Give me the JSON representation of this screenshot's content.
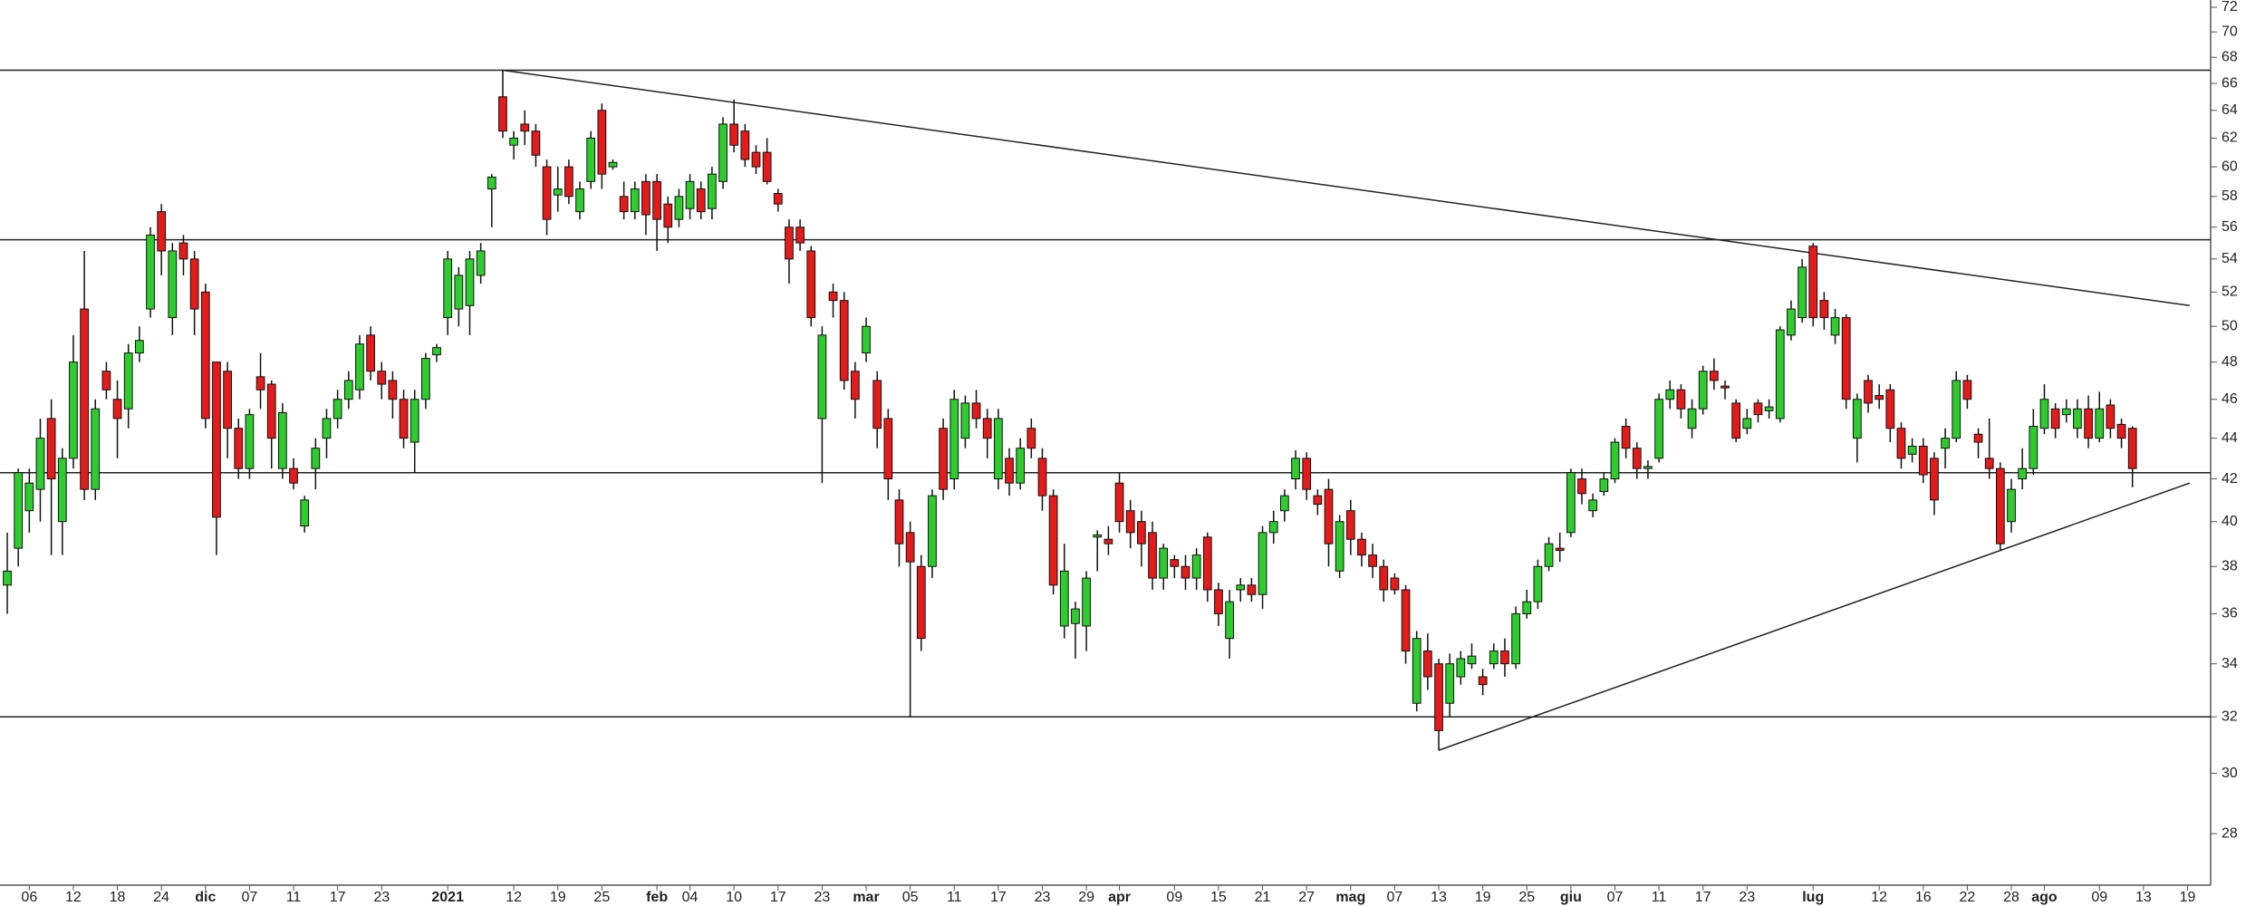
{
  "chart_data": {
    "type": "candlestick",
    "log_scale": true,
    "up_color": "#2ecc2e",
    "down_color": "#e41b1b",
    "line_color": "#222222",
    "xlim": [
      -0.66,
      200.1
    ],
    "ylim": [
      26.4,
      72.6
    ],
    "yticks": [
      28,
      30,
      32,
      34,
      36,
      38,
      40,
      42,
      44,
      46,
      48,
      50,
      52,
      54,
      56,
      58,
      60,
      62,
      64,
      66,
      68,
      70,
      72
    ],
    "xticks": [
      {
        "value": 2,
        "label": "06"
      },
      {
        "value": 6,
        "label": "12"
      },
      {
        "value": 10,
        "label": "18"
      },
      {
        "value": 14,
        "label": "24"
      },
      {
        "value": 18,
        "label": "dic"
      },
      {
        "value": 22,
        "label": "07"
      },
      {
        "value": 26,
        "label": "11"
      },
      {
        "value": 30,
        "label": "17"
      },
      {
        "value": 34,
        "label": "23"
      },
      {
        "value": 40,
        "label": "2021"
      },
      {
        "value": 46,
        "label": "12"
      },
      {
        "value": 50,
        "label": "19"
      },
      {
        "value": 54,
        "label": "25"
      },
      {
        "value": 59,
        "label": "feb"
      },
      {
        "value": 62,
        "label": "04"
      },
      {
        "value": 66,
        "label": "10"
      },
      {
        "value": 70,
        "label": "17"
      },
      {
        "value": 74,
        "label": "23"
      },
      {
        "value": 78,
        "label": "mar"
      },
      {
        "value": 82,
        "label": "05"
      },
      {
        "value": 86,
        "label": "11"
      },
      {
        "value": 90,
        "label": "17"
      },
      {
        "value": 94,
        "label": "23"
      },
      {
        "value": 98,
        "label": "29"
      },
      {
        "value": 101,
        "label": "apr"
      },
      {
        "value": 106,
        "label": "09"
      },
      {
        "value": 110,
        "label": "15"
      },
      {
        "value": 114,
        "label": "21"
      },
      {
        "value": 118,
        "label": "27"
      },
      {
        "value": 122,
        "label": "mag"
      },
      {
        "value": 126,
        "label": "07"
      },
      {
        "value": 130,
        "label": "13"
      },
      {
        "value": 134,
        "label": "19"
      },
      {
        "value": 138,
        "label": "25"
      },
      {
        "value": 142,
        "label": "giu"
      },
      {
        "value": 146,
        "label": "07"
      },
      {
        "value": 150,
        "label": "11"
      },
      {
        "value": 154,
        "label": "17"
      },
      {
        "value": 158,
        "label": "23"
      },
      {
        "value": 164,
        "label": "lug"
      },
      {
        "value": 170,
        "label": "12"
      },
      {
        "value": 174,
        "label": "16"
      },
      {
        "value": 178,
        "label": "22"
      },
      {
        "value": 182,
        "label": "28"
      },
      {
        "value": 185,
        "label": "ago"
      },
      {
        "value": 190,
        "label": "09"
      },
      {
        "value": 194,
        "label": "13"
      },
      {
        "value": 198,
        "label": "19"
      }
    ],
    "hlines": [
      67,
      55.2,
      42.3,
      32
    ],
    "trendlines": [
      {
        "x": [
          45,
          198.2
        ],
        "y": [
          67,
          51.2
        ]
      },
      {
        "x": [
          130,
          198.2
        ],
        "y": [
          30.8,
          41.8
        ]
      }
    ],
    "open": [
      37.2,
      38.8,
      40.5,
      41.5,
      45,
      40,
      43,
      51,
      41.5,
      47.5,
      46,
      45.5,
      48.5,
      51,
      57,
      50.5,
      55,
      54,
      52,
      48,
      47.5,
      44.5,
      42.5,
      47.2,
      46.8,
      42.5,
      42.5,
      39.8,
      42.5,
      44,
      45,
      46,
      46.5,
      49.5,
      47.5,
      47,
      46,
      43.8,
      46,
      48.4,
      50.5,
      51,
      51.2,
      53,
      58.5,
      65,
      61.5,
      63,
      62.5,
      60,
      58.1,
      60,
      57,
      59,
      64,
      60,
      58,
      57,
      59,
      59,
      57.5,
      56.5,
      57.2,
      58.5,
      57.2,
      59,
      63,
      62.5,
      61,
      61,
      58.2,
      56,
      56,
      54.5,
      45,
      52,
      51.5,
      47.5,
      48.5,
      47,
      45,
      41,
      39.5,
      38,
      38,
      44.5,
      42,
      44,
      45.8,
      45,
      42,
      43,
      41.8,
      44.5,
      43,
      41.2,
      35.5,
      35.6,
      35.5,
      39.3,
      39.2,
      41.8,
      40.5,
      40,
      39.5,
      37.5,
      38.3,
      38,
      37.5,
      39.3,
      37,
      35,
      37,
      37.2,
      36.8,
      39.5,
      40.5,
      42,
      43,
      41.2,
      41.5,
      37.8,
      40.5,
      39.2,
      38.5,
      38,
      37.5,
      37,
      32.5,
      34.5,
      34,
      32.5,
      33.5,
      34,
      33.5,
      34,
      34.5,
      34,
      36,
      36.5,
      38,
      38.8,
      39.5,
      42,
      40.5,
      41.4,
      42,
      44.6,
      43.5,
      42.5,
      43,
      46,
      46.5,
      44.5,
      45.5,
      47.5,
      46.7,
      45.8,
      44.5,
      45.8,
      45.4,
      45,
      49.5,
      50.5,
      54.8,
      51.5,
      49.5,
      50.5,
      44,
      47,
      46.2,
      46.5,
      44.5,
      43.2,
      43.6,
      43,
      43.5,
      44,
      47,
      44.2,
      43,
      42.5,
      40,
      42,
      42.5,
      44.5,
      45.5,
      45.2,
      44.5,
      45.5,
      44,
      45.7,
      44.7,
      44.5
    ],
    "high": [
      39.5,
      42.5,
      42.5,
      45,
      46,
      43.5,
      49.5,
      54.5,
      46,
      48,
      47,
      49,
      50,
      56,
      57.5,
      55,
      55.5,
      54.5,
      52.5,
      48,
      48,
      45,
      45.5,
      48.5,
      47,
      45.8,
      43,
      41.2,
      44,
      45.5,
      46.5,
      47.5,
      49.5,
      50,
      48,
      47.5,
      46.5,
      46.5,
      48.5,
      49,
      54.5,
      53.5,
      54.5,
      55,
      59.5,
      67,
      62.5,
      64,
      63,
      60.5,
      60,
      60.5,
      59,
      62.5,
      64.5,
      60.5,
      59,
      59,
      59.5,
      59.5,
      58,
      58.5,
      59.5,
      59,
      60,
      63.5,
      64.8,
      63,
      61.5,
      62,
      58.5,
      56.5,
      56.5,
      54.8,
      50,
      52.5,
      52,
      48,
      50.5,
      47.5,
      45.5,
      41.5,
      40,
      38.5,
      41.5,
      45,
      46.5,
      46.2,
      46.5,
      45.5,
      45.5,
      43.5,
      44,
      45,
      43.5,
      41.5,
      39,
      36.5,
      37.8,
      39.6,
      39.8,
      42.3,
      41,
      40.5,
      40,
      39,
      38.5,
      38.5,
      38.8,
      39.5,
      37.3,
      37,
      37.5,
      37.5,
      39.8,
      40.5,
      41.5,
      43.4,
      43.3,
      41.5,
      42,
      40.3,
      41,
      39.5,
      39,
      38.3,
      37.7,
      37.2,
      35.3,
      35.2,
      34.2,
      34.4,
      34.5,
      34.8,
      33.8,
      34.8,
      35,
      36.3,
      37,
      38.3,
      39.3,
      39.5,
      42.5,
      42.5,
      41.3,
      42.3,
      44,
      45,
      43.8,
      42.9,
      46.3,
      47,
      46.8,
      46,
      47.8,
      48.2,
      47,
      46,
      45.5,
      46,
      46,
      50,
      51.5,
      54,
      55,
      52,
      51,
      50.7,
      46.3,
      47.3,
      46.8,
      46.8,
      44.8,
      44,
      44,
      43.3,
      44.5,
      47.5,
      47.3,
      44.5,
      45,
      42.8,
      42,
      43.5,
      45.5,
      46.8,
      45.8,
      46,
      46,
      46.2,
      46.4,
      46,
      45,
      44.6
    ],
    "low": [
      36,
      38,
      39.5,
      40,
      38.5,
      38.5,
      42.5,
      41,
      41,
      46,
      43,
      44.5,
      48,
      50.5,
      53,
      49.5,
      53,
      49.5,
      44.5,
      38.5,
      43,
      42,
      42,
      45.5,
      42.5,
      42,
      41.5,
      39.5,
      41.5,
      43,
      44.5,
      45.5,
      46,
      47,
      46,
      45,
      43.5,
      42.3,
      45.5,
      48,
      49.5,
      50,
      49.5,
      52.5,
      56,
      62,
      60.5,
      61.5,
      60,
      55.5,
      57,
      57.5,
      56.5,
      58.5,
      58.5,
      59.8,
      56.5,
      56.5,
      55.5,
      54.5,
      55,
      56,
      56.5,
      56.5,
      56.5,
      58.5,
      61,
      60,
      59.5,
      58.8,
      57,
      52.5,
      54.5,
      50,
      41.8,
      50.5,
      46.5,
      45,
      48,
      43.5,
      41,
      38,
      32,
      34.5,
      37.5,
      41,
      41.5,
      43.5,
      44.5,
      43,
      41.5,
      41.2,
      41.5,
      43,
      40.5,
      36.8,
      35,
      34.2,
      34.5,
      37.8,
      38.5,
      39.5,
      38.8,
      38,
      37,
      37,
      37.5,
      37,
      37,
      36.5,
      35.5,
      34.2,
      36.5,
      36.5,
      36.2,
      39,
      40,
      41.5,
      41,
      40.3,
      38,
      37.5,
      38.5,
      38,
      37.5,
      36.5,
      36.8,
      34,
      32.2,
      33,
      30.8,
      32,
      33.2,
      33.8,
      32.8,
      33.8,
      33.5,
      33.8,
      35.8,
      36.2,
      37.8,
      38.2,
      39.3,
      40.8,
      40.2,
      41.2,
      41.8,
      43,
      42,
      42,
      42.8,
      45.5,
      45,
      44,
      45.2,
      46.5,
      46,
      43.8,
      44.2,
      44.8,
      45,
      44.8,
      49.2,
      50.2,
      50,
      49.8,
      49,
      45.5,
      42.8,
      45.3,
      45.5,
      43.8,
      42.5,
      42.8,
      41.8,
      40.3,
      42.5,
      43.8,
      45.5,
      43,
      42,
      38.7,
      39.5,
      41.5,
      42.2,
      44.2,
      44,
      44.8,
      44,
      43.5,
      43.8,
      44,
      43.5,
      41.6
    ],
    "close": [
      37.8,
      42.3,
      41.8,
      44,
      42,
      43,
      48,
      41.5,
      45.5,
      46.5,
      45,
      48.5,
      49.2,
      55.5,
      54.5,
      54.5,
      54,
      51,
      45,
      40.2,
      44.5,
      42.5,
      45.2,
      46.5,
      44,
      45.3,
      41.8,
      41,
      43.5,
      45,
      46,
      47,
      49,
      47.5,
      46.8,
      46,
      44,
      46,
      48.2,
      48.8,
      54,
      53,
      54,
      54.5,
      59.3,
      62.5,
      62,
      62.5,
      60.8,
      56.5,
      58.5,
      58,
      58.5,
      62,
      59.5,
      60.3,
      57,
      58.5,
      56.8,
      56.5,
      56,
      58,
      59,
      57,
      59.5,
      63,
      61.5,
      60.5,
      60,
      59,
      57.5,
      54,
      55,
      50.5,
      49.5,
      51.5,
      47,
      46,
      50,
      44.5,
      42,
      39,
      38.2,
      35,
      41.2,
      41.5,
      46,
      45.8,
      45,
      44,
      45,
      41.8,
      43.5,
      43.5,
      41.2,
      37.2,
      37.8,
      36.2,
      37.5,
      39.4,
      39,
      40,
      39.5,
      39,
      37.5,
      38.8,
      38,
      37.5,
      38.5,
      37,
      36,
      36.5,
      37.2,
      36.8,
      39.5,
      40,
      41.2,
      43,
      41.5,
      40.8,
      39,
      40,
      39.2,
      38.5,
      38,
      37,
      37,
      34.5,
      35,
      33.5,
      31.5,
      34,
      34.2,
      34.3,
      33.2,
      34.5,
      34,
      36,
      36.5,
      38,
      39,
      38.7,
      42.3,
      41.3,
      41,
      42,
      43.8,
      43.5,
      42.5,
      42.6,
      46,
      46.5,
      45.5,
      45.5,
      47.5,
      47,
      46.6,
      44,
      45,
      45.2,
      45.6,
      49.8,
      51,
      53.5,
      50.5,
      50.5,
      50.5,
      46,
      46,
      45.8,
      46,
      44.5,
      43,
      43.6,
      42.2,
      41,
      44,
      47,
      46,
      43.8,
      42.5,
      39,
      41.5,
      42.5,
      44.6,
      46,
      44.5,
      45.5,
      45.5,
      44,
      45.5,
      44.5,
      44,
      42.5
    ]
  }
}
